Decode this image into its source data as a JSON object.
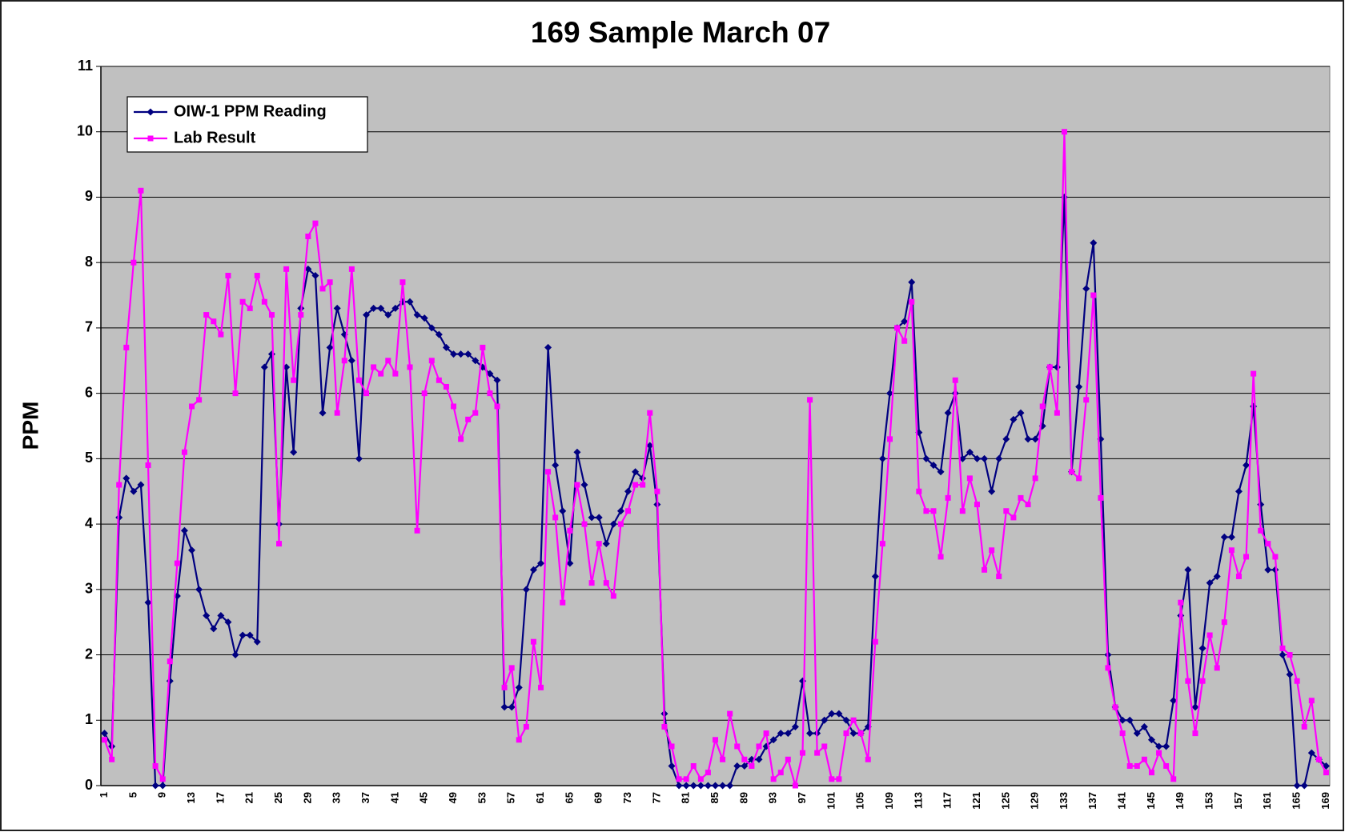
{
  "chart_data": {
    "type": "line",
    "title": "169 Sample March 07",
    "y_label": "PPM",
    "categories": [
      1,
      null,
      null,
      null,
      5,
      null,
      null,
      null,
      9,
      null,
      null,
      null,
      13,
      null,
      null,
      null,
      17,
      null,
      null,
      null,
      21,
      null,
      null,
      null,
      25,
      null,
      null,
      null,
      29,
      null,
      null,
      null,
      33,
      null,
      null,
      null,
      37,
      null,
      null,
      null,
      41,
      null,
      null,
      null,
      45,
      null,
      null,
      null,
      49,
      null,
      null,
      null,
      53,
      null,
      null,
      null,
      57,
      null,
      null,
      null,
      61,
      null,
      null,
      null,
      65,
      null,
      null,
      null,
      69,
      null,
      null,
      null,
      73,
      null,
      null,
      null,
      77,
      null,
      null,
      null,
      81,
      null,
      null,
      null,
      85,
      null,
      null,
      null,
      89,
      null,
      null,
      null,
      93,
      null,
      null,
      null,
      97,
      null,
      null,
      null,
      101,
      null,
      null,
      null,
      105,
      null,
      null,
      null,
      109,
      null,
      null,
      null,
      113,
      null,
      null,
      null,
      117,
      null,
      null,
      null,
      121,
      null,
      null,
      null,
      125,
      null,
      null,
      null,
      129,
      null,
      null,
      null,
      133,
      null,
      null,
      null,
      137,
      null,
      null,
      null,
      141,
      null,
      null,
      null,
      145,
      null,
      null,
      null,
      149,
      null,
      null,
      null,
      153,
      null,
      null,
      null,
      157,
      null,
      null,
      null,
      161,
      null,
      null,
      null,
      165,
      null,
      null,
      null,
      169
    ],
    "series": [
      {
        "name": "OIW-1 PPM Reading",
        "color": "#000080",
        "marker": "diamond",
        "values": [
          0.8,
          0.6,
          4.1,
          4.7,
          4.5,
          4.6,
          2.8,
          0,
          0,
          1.6,
          2.9,
          3.9,
          3.6,
          3.0,
          2.6,
          2.4,
          2.6,
          2.5,
          2.0,
          2.3,
          2.3,
          2.2,
          6.4,
          6.6,
          4.0,
          6.4,
          5.1,
          7.3,
          7.9,
          7.8,
          5.7,
          6.7,
          7.3,
          6.9,
          6.5,
          5.0,
          7.2,
          7.3,
          7.3,
          7.2,
          7.3,
          7.4,
          7.4,
          7.2,
          7.15,
          7.0,
          6.9,
          6.7,
          6.6,
          6.6,
          6.6,
          6.5,
          6.4,
          6.3,
          6.2,
          1.2,
          1.2,
          1.5,
          3.0,
          3.3,
          3.4,
          6.7,
          4.9,
          4.2,
          3.4,
          5.1,
          4.6,
          4.1,
          4.1,
          3.7,
          4.0,
          4.2,
          4.5,
          4.8,
          4.7,
          5.2,
          4.3,
          1.1,
          0.3,
          0,
          0,
          0,
          0,
          0,
          0,
          0,
          0,
          0.3,
          0.3,
          0.4,
          0.4,
          0.6,
          0.7,
          0.8,
          0.8,
          0.9,
          1.6,
          0.8,
          0.8,
          1.0,
          1.1,
          1.1,
          1.0,
          0.8,
          0.8,
          0.9,
          3.2,
          5.0,
          6.0,
          7.0,
          7.1,
          7.7,
          5.4,
          5.0,
          4.9,
          4.8,
          5.7,
          6.0,
          5.0,
          5.1,
          5.0,
          5.0,
          4.5,
          5.0,
          5.3,
          5.6,
          5.7,
          5.3,
          5.3,
          5.5,
          6.4,
          6.4,
          9.0,
          4.8,
          6.1,
          7.6,
          8.3,
          5.3,
          2.0,
          1.2,
          1.0,
          1.0,
          0.8,
          0.9,
          0.7,
          0.6,
          0.6,
          1.3,
          2.6,
          3.3,
          1.2,
          2.1,
          3.1,
          3.2,
          3.8,
          3.8,
          4.5,
          4.9,
          5.8,
          4.3,
          3.3,
          3.3,
          2.0,
          1.7,
          0,
          0,
          0.5,
          0.4,
          0.3
        ]
      },
      {
        "name": "Lab Result",
        "color": "#ff00ff",
        "marker": "square",
        "values": [
          0.7,
          0.4,
          4.6,
          6.7,
          8.0,
          9.1,
          4.9,
          0.3,
          0.1,
          1.9,
          3.4,
          5.1,
          5.8,
          5.9,
          7.2,
          7.1,
          6.9,
          7.8,
          6.0,
          7.4,
          7.3,
          7.8,
          7.4,
          7.2,
          3.7,
          7.9,
          6.2,
          7.2,
          8.4,
          8.6,
          7.6,
          7.7,
          5.7,
          6.5,
          7.9,
          6.2,
          6.0,
          6.4,
          6.3,
          6.5,
          6.3,
          7.7,
          6.4,
          3.9,
          6.0,
          6.5,
          6.2,
          6.1,
          5.8,
          5.3,
          5.6,
          5.7,
          6.7,
          6.0,
          5.8,
          1.5,
          1.8,
          0.7,
          0.9,
          2.2,
          1.5,
          4.8,
          4.1,
          2.8,
          3.9,
          4.6,
          4.0,
          3.1,
          3.7,
          3.1,
          2.9,
          4.0,
          4.2,
          4.6,
          4.6,
          5.7,
          4.5,
          0.9,
          0.6,
          0.1,
          0.1,
          0.3,
          0.1,
          0.2,
          0.7,
          0.4,
          1.1,
          0.6,
          0.4,
          0.3,
          0.6,
          0.8,
          0.1,
          0.2,
          0.4,
          0,
          0.5,
          5.9,
          0.5,
          0.6,
          0.1,
          0.1,
          0.8,
          1.0,
          0.8,
          0.4,
          2.2,
          3.7,
          5.3,
          7.0,
          6.8,
          7.4,
          4.5,
          4.2,
          4.2,
          3.5,
          4.4,
          6.2,
          4.2,
          4.7,
          4.3,
          3.3,
          3.6,
          3.2,
          4.2,
          4.1,
          4.4,
          4.3,
          4.7,
          5.8,
          6.4,
          5.7,
          10.0,
          4.8,
          4.7,
          5.9,
          7.5,
          4.4,
          1.8,
          1.2,
          0.8,
          0.3,
          0.3,
          0.4,
          0.2,
          0.5,
          0.3,
          0.1,
          2.8,
          1.6,
          0.8,
          1.6,
          2.3,
          1.8,
          2.5,
          3.6,
          3.2,
          3.5,
          6.3,
          3.9,
          3.7,
          3.5,
          2.1,
          2.0,
          1.6,
          0.9,
          1.3,
          0.4,
          0.2
        ]
      }
    ],
    "ylim": [
      0,
      11
    ],
    "yticks": [
      0,
      1,
      2,
      3,
      4,
      5,
      6,
      7,
      8,
      9,
      10,
      11
    ],
    "grid": true,
    "plot_background": "#c0c0c0",
    "legend_position": "upper left"
  }
}
